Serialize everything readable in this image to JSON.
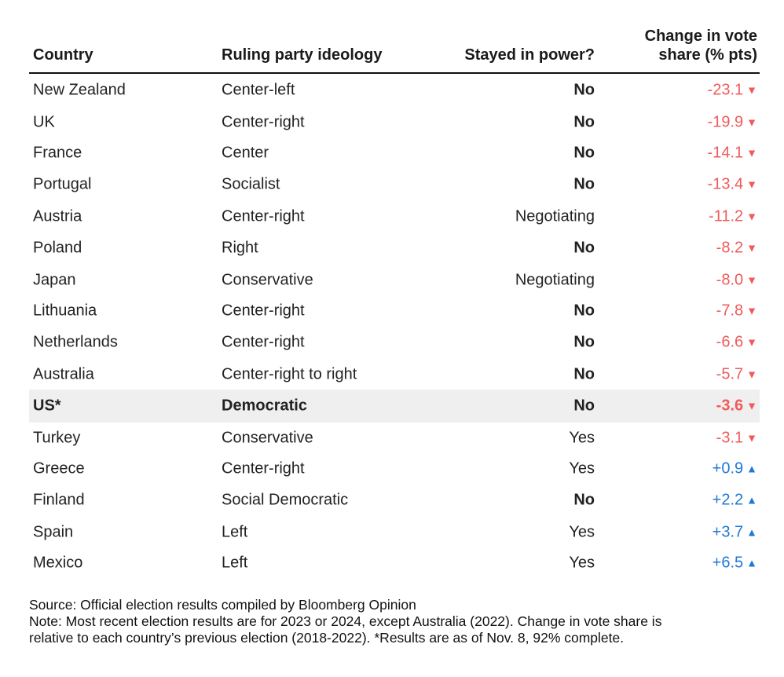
{
  "columns": {
    "country": "Country",
    "ideology": "Ruling party ideology",
    "stayed": "Stayed in power?",
    "change_line1": "Change in vote",
    "change_line2": "share (% pts)"
  },
  "chart_data": {
    "type": "table",
    "columns": [
      "Country",
      "Ruling party ideology",
      "Stayed in power?",
      "Change in vote share (% pts)"
    ],
    "rows": [
      {
        "country": "New Zealand",
        "ideology": "Center-left",
        "stayed": "No",
        "change": -23.1,
        "change_label": "-23.1"
      },
      {
        "country": "UK",
        "ideology": "Center-right",
        "stayed": "No",
        "change": -19.9,
        "change_label": "-19.9"
      },
      {
        "country": "France",
        "ideology": "Center",
        "stayed": "No",
        "change": -14.1,
        "change_label": "-14.1"
      },
      {
        "country": "Portugal",
        "ideology": "Socialist",
        "stayed": "No",
        "change": -13.4,
        "change_label": "-13.4"
      },
      {
        "country": "Austria",
        "ideology": "Center-right",
        "stayed": "Negotiating",
        "change": -11.2,
        "change_label": "-11.2"
      },
      {
        "country": "Poland",
        "ideology": "Right",
        "stayed": "No",
        "change": -8.2,
        "change_label": "-8.2"
      },
      {
        "country": "Japan",
        "ideology": "Conservative",
        "stayed": "Negotiating",
        "change": -8.0,
        "change_label": "-8.0"
      },
      {
        "country": "Lithuania",
        "ideology": "Center-right",
        "stayed": "No",
        "change": -7.8,
        "change_label": "-7.8"
      },
      {
        "country": "Netherlands",
        "ideology": "Center-right",
        "stayed": "No",
        "change": -6.6,
        "change_label": "-6.6"
      },
      {
        "country": "Australia",
        "ideology": "Center-right to right",
        "stayed": "No",
        "change": -5.7,
        "change_label": "-5.7"
      },
      {
        "country": "US*",
        "ideology": "Democratic",
        "stayed": "No",
        "change": -3.6,
        "change_label": "-3.6",
        "highlight": true
      },
      {
        "country": "Turkey",
        "ideology": "Conservative",
        "stayed": "Yes",
        "change": -3.1,
        "change_label": "-3.1"
      },
      {
        "country": "Greece",
        "ideology": "Center-right",
        "stayed": "Yes",
        "change": 0.9,
        "change_label": "+0.9"
      },
      {
        "country": "Finland",
        "ideology": "Social Democratic",
        "stayed": "No",
        "change": 2.2,
        "change_label": "+2.2"
      },
      {
        "country": "Spain",
        "ideology": "Left",
        "stayed": "Yes",
        "change": 3.7,
        "change_label": "+3.7"
      },
      {
        "country": "Mexico",
        "ideology": "Left",
        "stayed": "Yes",
        "change": 6.5,
        "change_label": "+6.5"
      }
    ],
    "colors": {
      "negative": "#f05a5a",
      "positive": "#1f78d6",
      "highlight_row": "#efefef"
    },
    "icons": {
      "negative": "down-triangle-icon",
      "positive": "up-triangle-icon"
    },
    "arrow_glyphs": {
      "negative": "▼",
      "positive": "▲"
    }
  },
  "notes": {
    "source": "Source: Official election results compiled by Bloomberg Opinion",
    "note_line1": "Note: Most recent election results are for 2023 or 2024, except Australia (2022). Change in vote share is",
    "note_line2": "relative to each country’s previous election (2018-2022). *Results are as of Nov. 8, 92% complete."
  }
}
